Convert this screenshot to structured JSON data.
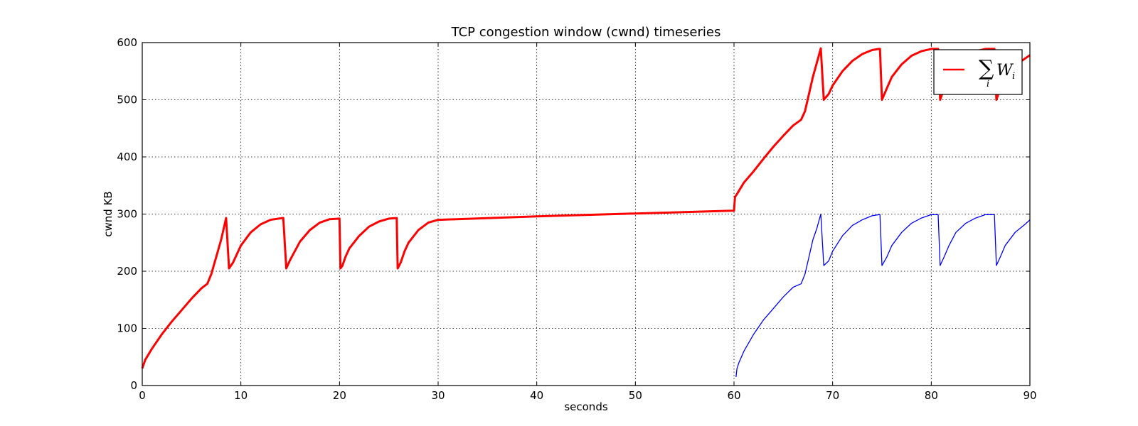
{
  "chart_data": {
    "type": "line",
    "title": "TCP congestion window (cwnd) timeseries",
    "xlabel": "seconds",
    "ylabel": "cwnd KB",
    "xlim": [
      0,
      90
    ],
    "ylim": [
      0,
      600
    ],
    "x_ticks": [
      0,
      10,
      20,
      30,
      40,
      50,
      60,
      70,
      80,
      90
    ],
    "y_ticks": [
      0,
      100,
      200,
      300,
      400,
      500,
      600
    ],
    "grid": true,
    "legend_position": "top-right",
    "series": [
      {
        "name": "∑_i W_i",
        "color": "#ff0000",
        "x": [
          0,
          0.3,
          1,
          2,
          3,
          4,
          5,
          6,
          6.6,
          7,
          7.5,
          8,
          8.5,
          8.8,
          9.2,
          10,
          11,
          12,
          13,
          14.2,
          14.3,
          14.6,
          15,
          16,
          17,
          18,
          19,
          20,
          20.1,
          20.3,
          20.6,
          21,
          22,
          23,
          24,
          25,
          25.8,
          25.9,
          26.2,
          26.6,
          27,
          28,
          29,
          30,
          30.1,
          40,
          50,
          60,
          60.1,
          60.3,
          61,
          62,
          63,
          64,
          65,
          66,
          66.8,
          67.2,
          67.6,
          68,
          68.4,
          68.8,
          69.1,
          69.6,
          70,
          71,
          72,
          73,
          74,
          74.7,
          74.8,
          75,
          75.5,
          76,
          77,
          78,
          79,
          80,
          80.6,
          80.7,
          80.9,
          81.3,
          81.8,
          82.5,
          83.5,
          84.5,
          85.5,
          86.3,
          86.4,
          86.6,
          87,
          87.5,
          88.5,
          89.5,
          90
        ],
        "values": [
          30,
          45,
          65,
          90,
          112,
          132,
          152,
          170,
          178,
          195,
          225,
          255,
          293,
          205,
          215,
          245,
          268,
          282,
          290,
          293,
          293,
          205,
          220,
          252,
          272,
          285,
          291,
          292,
          205,
          210,
          225,
          240,
          262,
          278,
          287,
          292,
          293,
          205,
          215,
          235,
          250,
          272,
          285,
          290,
          290,
          296,
          301,
          306,
          330,
          335,
          355,
          375,
          397,
          418,
          437,
          455,
          465,
          480,
          510,
          540,
          565,
          590,
          500,
          510,
          525,
          550,
          568,
          580,
          587,
          589,
          589,
          500,
          520,
          540,
          562,
          577,
          585,
          589,
          589,
          589,
          500,
          520,
          540,
          562,
          577,
          585,
          589,
          589,
          589,
          500,
          520,
          540,
          560,
          572,
          578
        ]
      },
      {
        "name": "",
        "color": "#0000ff",
        "x": [
          60.2,
          60.3,
          60.5,
          61,
          62,
          63,
          64,
          65,
          66,
          66.8,
          67.2,
          67.6,
          68,
          68.4,
          68.8,
          69.1,
          69.6,
          70,
          71,
          72,
          73,
          74,
          74.7,
          74.8,
          75,
          75.5,
          76,
          77,
          78,
          79,
          80,
          80.6,
          80.7,
          80.9,
          81.3,
          81.8,
          82.5,
          83.5,
          84.5,
          85.5,
          86.3,
          86.4,
          86.6,
          87,
          87.5,
          88.5,
          89.5,
          90
        ],
        "values": [
          15,
          30,
          40,
          60,
          90,
          115,
          135,
          155,
          172,
          178,
          195,
          225,
          255,
          275,
          300,
          210,
          218,
          235,
          262,
          280,
          290,
          297,
          299,
          299,
          210,
          225,
          245,
          268,
          284,
          293,
          299,
          299,
          299,
          210,
          225,
          245,
          268,
          284,
          293,
          299,
          299,
          299,
          210,
          225,
          245,
          268,
          282,
          290
        ]
      }
    ]
  }
}
